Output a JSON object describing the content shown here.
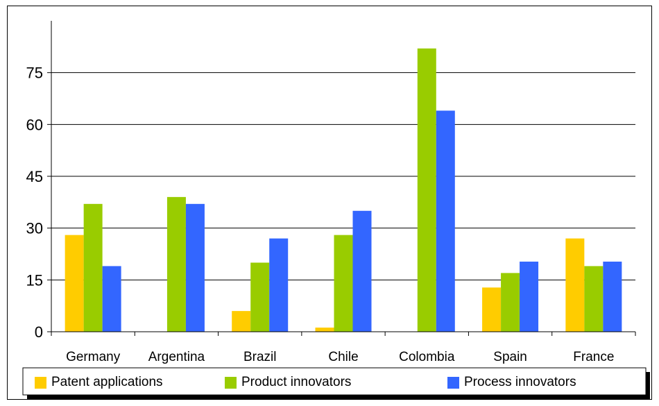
{
  "chart_data": {
    "type": "bar",
    "categories": [
      "Germany",
      "Argentina",
      "Brazil",
      "Chile",
      "Colombia",
      "Spain",
      "France"
    ],
    "series": [
      {
        "name": "Patent applications",
        "color": "#ffcc00",
        "values": [
          28,
          0,
          6,
          1.2,
          0,
          12.8,
          27
        ]
      },
      {
        "name": "Product innovators",
        "color": "#99cc00",
        "values": [
          37,
          39,
          20,
          28,
          82,
          17,
          19
        ]
      },
      {
        "name": "Process innovators",
        "color": "#3366ff",
        "values": [
          19,
          37,
          27,
          35,
          64,
          20.3,
          20.3
        ]
      }
    ],
    "yticks": [
      0,
      15,
      30,
      45,
      60,
      75
    ],
    "ylim": [
      0,
      90
    ],
    "grid": true,
    "legend_position": "bottom"
  }
}
